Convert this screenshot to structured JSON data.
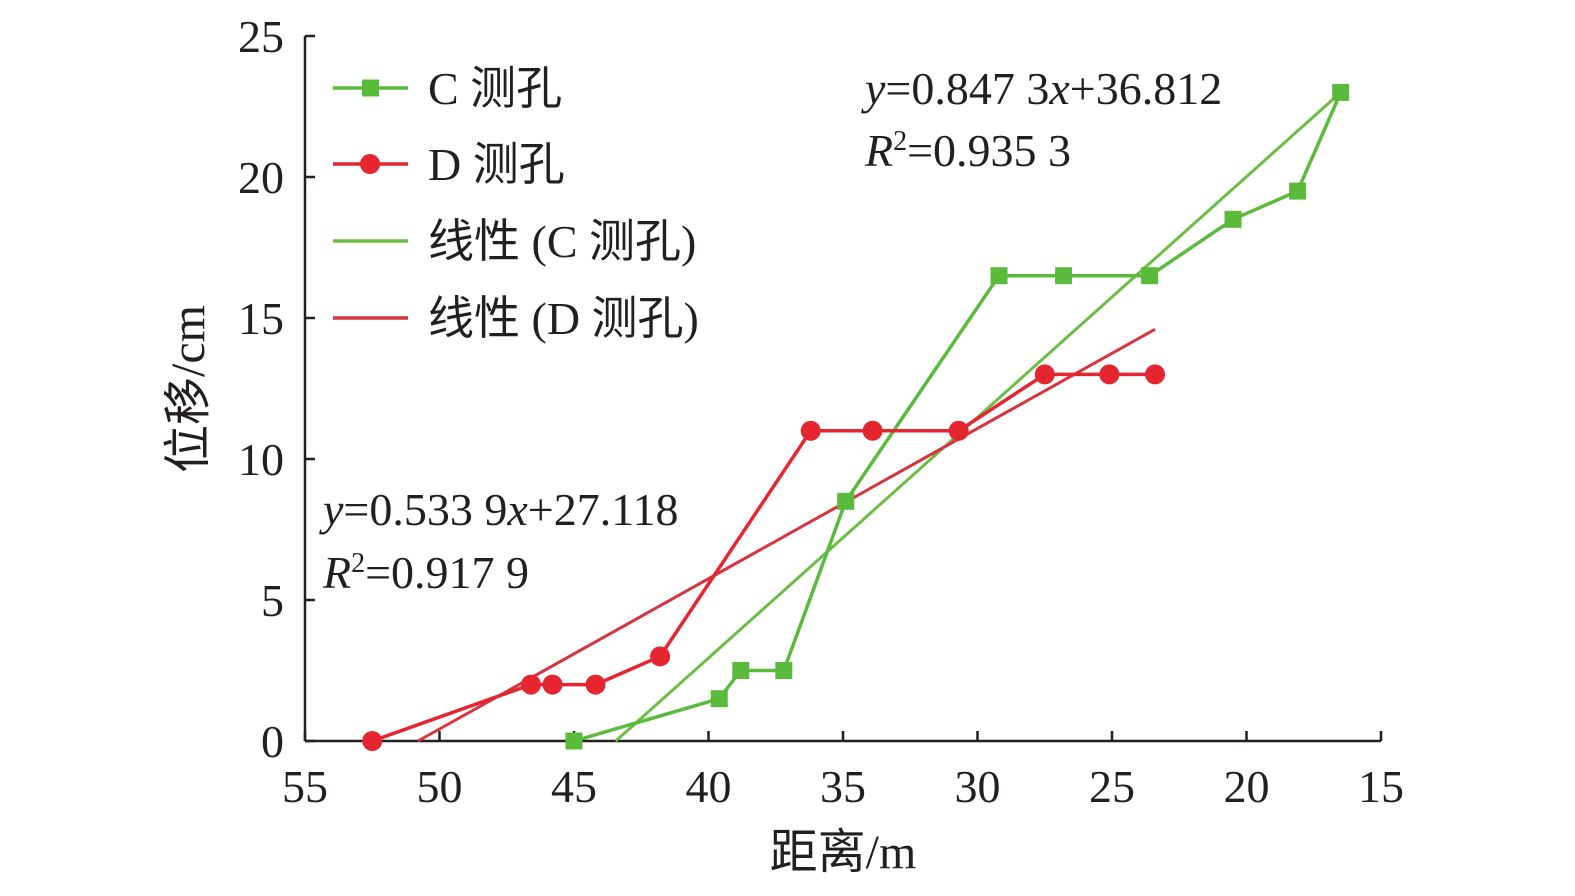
{
  "chart_data": {
    "type": "line",
    "xlabel": "距离/m",
    "ylabel": "位移/cm",
    "xlim": [
      55,
      15
    ],
    "ylim": [
      0,
      25
    ],
    "x_reversed": true,
    "x_ticks": [
      "55",
      "50",
      "45",
      "40",
      "35",
      "30",
      "25",
      "20",
      "15"
    ],
    "y_ticks": [
      "0",
      "5",
      "10",
      "15",
      "20",
      "25"
    ],
    "grid": false,
    "legend_position": "top-left",
    "series": [
      {
        "name": "C 测孔",
        "color": "#5aba3c",
        "marker": "square",
        "x": [
          45,
          39.6,
          38.8,
          37.2,
          34.9,
          29.2,
          26.8,
          23.6,
          20.5,
          18.1,
          16.5
        ],
        "y": [
          0,
          1.5,
          2.5,
          2.5,
          8.5,
          16.5,
          16.5,
          16.5,
          18.5,
          19.5,
          23
        ]
      },
      {
        "name": "D 测孔",
        "color": "#e52530",
        "marker": "circle",
        "x": [
          52.5,
          46.6,
          45.8,
          44.2,
          41.8,
          36.2,
          33.9,
          30.7,
          27.5,
          25.1,
          23.4
        ],
        "y": [
          0,
          2,
          2,
          2,
          3,
          11,
          11,
          11,
          13,
          13,
          13
        ]
      },
      {
        "name": "线性 (C 测孔)",
        "color": "#6cbd45",
        "kind": "trendline",
        "x": [
          43.45,
          16.5
        ],
        "y": [
          0,
          23
        ]
      },
      {
        "name": "线性 (D 测孔)",
        "color": "#d6343e",
        "kind": "trendline",
        "x": [
          50.8,
          23.4
        ],
        "y": [
          0,
          14.6
        ]
      }
    ],
    "annotations": [
      {
        "id": "eq_c",
        "line1": {
          "y": "y",
          "p1": "=0.847 3",
          "x": "x",
          "p2": "+36.812"
        },
        "line2": {
          "R": "R",
          "sup": "2",
          "p": "=0.935 3"
        }
      },
      {
        "id": "eq_d",
        "line1": {
          "y": "y",
          "p1": "=0.533 9",
          "x": "x",
          "p2": "+27.118"
        },
        "line2": {
          "R": "R",
          "sup": "2",
          "p": "=0.917 9"
        }
      }
    ]
  }
}
